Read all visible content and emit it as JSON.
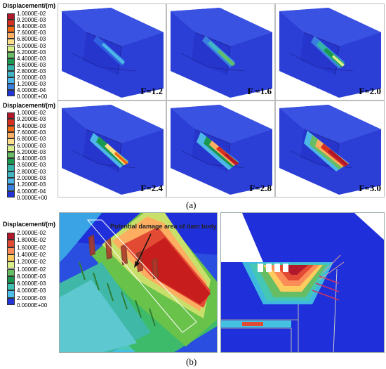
{
  "legend_top": {
    "title": "Displacement/(m)",
    "ticks": [
      "1.0000E-02",
      "9.2000E-03",
      "8.4000E-03",
      "7.6000E-03",
      "6.8000E-03",
      "6.0000E-03",
      "5.2000E-03",
      "4.4000E-03",
      "3.6000E-03",
      "2.8000E-03",
      "2.0000E-03",
      "1.2000E-03",
      "4.0000E-04",
      "0.0000E+00"
    ]
  },
  "legend_mid": {
    "title": "Displacement/(m)",
    "ticks": [
      "1.0000E-02",
      "9.2000E-03",
      "8.4000E-03",
      "7.6000E-03",
      "6.8000E-03",
      "6.0000E-03",
      "5.2000E-03",
      "4.4000E-03",
      "3.6000E-03",
      "2.8000E-03",
      "2.0000E-03",
      "1.2000E-03",
      "4.0000E-04",
      "0.0000E+00"
    ]
  },
  "legend_bottom": {
    "title": "Displacement/(m)",
    "ticks": [
      "2.0000E-02",
      "1.8000E-02",
      "1.6000E-02",
      "1.4000E-02",
      "1.2000E-02",
      "1.0000E-02",
      "8.0000E-03",
      "6.0000E-03",
      "4.0000E-03",
      "2.0000E-03",
      "0.0000E+00"
    ]
  },
  "colors_top": [
    "#b2182b",
    "#d7301f",
    "#f16913",
    "#fdae61",
    "#fee08b",
    "#d9ef8b",
    "#66bd63",
    "#1a9850",
    "#35b5a8",
    "#41b6c4",
    "#4cb7e8",
    "#3a7fe0",
    "#2234d6"
  ],
  "colors_bottom": [
    "#b2182b",
    "#e34a33",
    "#fc8d59",
    "#fdcc5e",
    "#d9ef8b",
    "#66bd63",
    "#1a9850",
    "#3cc0b0",
    "#4cc0e8",
    "#2234d6"
  ],
  "panels": [
    {
      "label": "F=1.2"
    },
    {
      "label": "F =1.6"
    },
    {
      "label": "F=2.0"
    },
    {
      "label": "F=2.4"
    },
    {
      "label": "F=2.8"
    },
    {
      "label": "F=3.0"
    }
  ],
  "caption_a": "(a)",
  "caption_b": "(b)",
  "annotation": "Potential damage area of dam body"
}
